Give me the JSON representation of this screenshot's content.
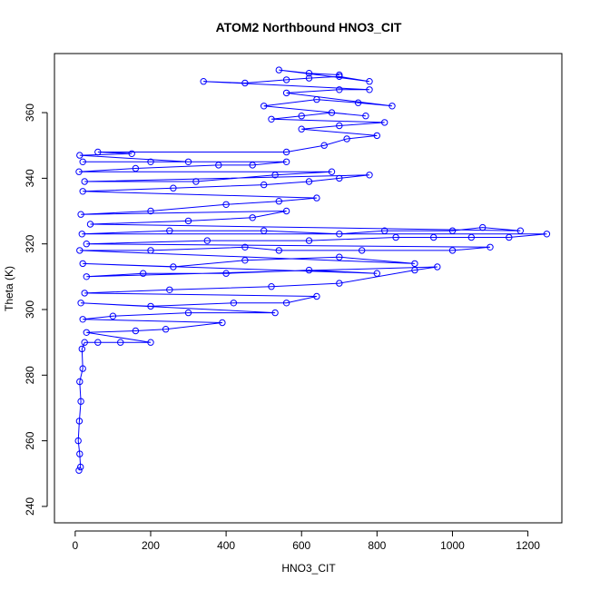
{
  "chart_data": {
    "type": "scatter",
    "title": "ATOM2 Northbound HNO3_CIT",
    "xlabel": "HNO3_CIT",
    "ylabel": "Theta (K)",
    "xlim": [
      -55,
      1290
    ],
    "ylim": [
      235,
      378
    ],
    "x_ticks": [
      0,
      200,
      400,
      600,
      800,
      1000,
      1200
    ],
    "y_ticks": [
      240,
      260,
      280,
      300,
      320,
      340,
      360
    ],
    "grid": false,
    "legend": "none",
    "series": [
      {
        "color": "#0000ff",
        "marker": "open-circle",
        "connected": true,
        "points": [
          [
            10,
            251
          ],
          [
            14,
            252
          ],
          [
            12,
            256
          ],
          [
            8,
            260
          ],
          [
            11,
            266
          ],
          [
            15,
            272
          ],
          [
            12,
            278
          ],
          [
            20,
            282
          ],
          [
            18,
            288
          ],
          [
            25,
            290
          ],
          [
            60,
            290
          ],
          [
            120,
            290
          ],
          [
            200,
            290
          ],
          [
            30,
            293
          ],
          [
            160,
            293.5
          ],
          [
            240,
            294
          ],
          [
            390,
            296
          ],
          [
            20,
            297
          ],
          [
            100,
            298
          ],
          [
            300,
            299
          ],
          [
            530,
            299
          ],
          [
            15,
            302
          ],
          [
            200,
            301
          ],
          [
            420,
            302
          ],
          [
            560,
            302
          ],
          [
            640,
            304
          ],
          [
            25,
            305
          ],
          [
            250,
            306
          ],
          [
            520,
            307
          ],
          [
            700,
            308
          ],
          [
            900,
            312
          ],
          [
            960,
            313
          ],
          [
            30,
            310
          ],
          [
            180,
            311
          ],
          [
            400,
            311
          ],
          [
            620,
            312
          ],
          [
            800,
            311
          ],
          [
            20,
            314
          ],
          [
            260,
            313
          ],
          [
            450,
            315
          ],
          [
            700,
            316
          ],
          [
            900,
            314
          ],
          [
            12,
            318
          ],
          [
            200,
            318
          ],
          [
            450,
            319
          ],
          [
            540,
            318
          ],
          [
            760,
            318
          ],
          [
            1000,
            318
          ],
          [
            1100,
            319
          ],
          [
            30,
            320
          ],
          [
            350,
            321
          ],
          [
            620,
            321
          ],
          [
            850,
            322
          ],
          [
            950,
            322
          ],
          [
            1050,
            322
          ],
          [
            1150,
            322
          ],
          [
            1250,
            323
          ],
          [
            18,
            323
          ],
          [
            250,
            324
          ],
          [
            500,
            324
          ],
          [
            700,
            323
          ],
          [
            820,
            324
          ],
          [
            1000,
            324
          ],
          [
            1080,
            325
          ],
          [
            1180,
            324
          ],
          [
            40,
            326
          ],
          [
            300,
            327
          ],
          [
            470,
            328
          ],
          [
            560,
            330
          ],
          [
            15,
            329
          ],
          [
            200,
            330
          ],
          [
            400,
            332
          ],
          [
            540,
            333
          ],
          [
            640,
            334
          ],
          [
            20,
            336
          ],
          [
            260,
            337
          ],
          [
            500,
            338
          ],
          [
            620,
            339
          ],
          [
            700,
            340
          ],
          [
            780,
            341
          ],
          [
            25,
            339
          ],
          [
            320,
            339
          ],
          [
            530,
            341
          ],
          [
            680,
            342
          ],
          [
            10,
            342
          ],
          [
            160,
            343
          ],
          [
            380,
            344
          ],
          [
            470,
            344
          ],
          [
            560,
            345
          ],
          [
            20,
            345
          ],
          [
            200,
            345
          ],
          [
            300,
            345
          ],
          [
            12,
            347
          ],
          [
            150,
            347.5
          ],
          [
            60,
            348
          ],
          [
            560,
            348
          ],
          [
            660,
            350
          ],
          [
            720,
            352
          ],
          [
            800,
            353
          ],
          [
            600,
            355
          ],
          [
            700,
            356
          ],
          [
            820,
            357
          ],
          [
            520,
            358
          ],
          [
            600,
            359
          ],
          [
            680,
            360
          ],
          [
            770,
            359
          ],
          [
            500,
            362
          ],
          [
            640,
            364
          ],
          [
            750,
            363
          ],
          [
            840,
            362
          ],
          [
            560,
            366
          ],
          [
            700,
            367
          ],
          [
            780,
            367
          ],
          [
            340,
            369.5
          ],
          [
            450,
            369
          ],
          [
            560,
            370
          ],
          [
            620,
            370.5
          ],
          [
            700,
            371
          ],
          [
            780,
            369.5
          ],
          [
            540,
            373
          ],
          [
            620,
            372
          ],
          [
            700,
            371.5
          ]
        ]
      }
    ]
  }
}
